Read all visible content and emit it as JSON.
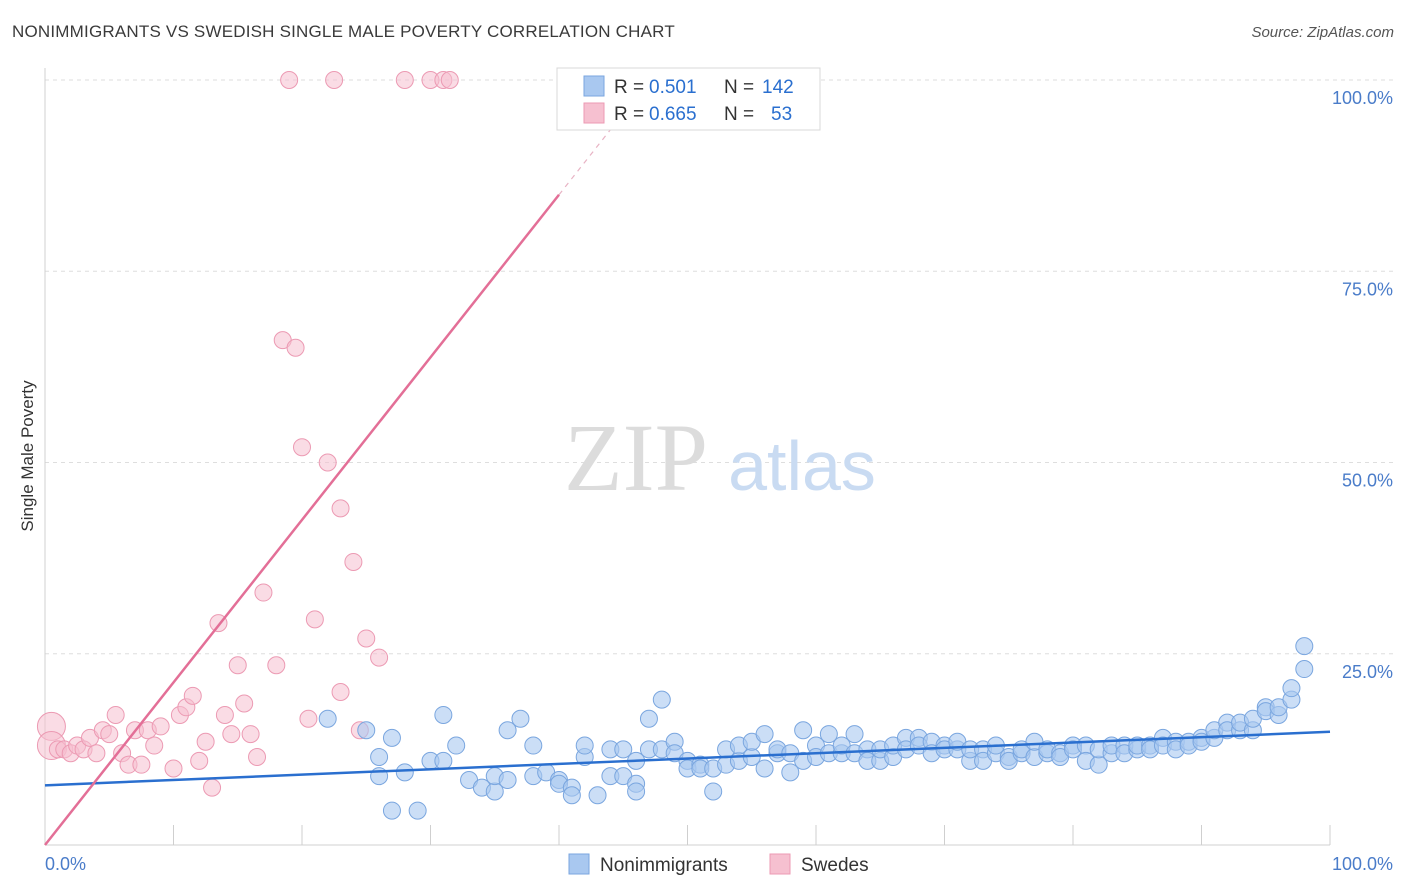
{
  "title": "NONIMMIGRANTS VS SWEDISH SINGLE MALE POVERTY CORRELATION CHART",
  "source": "Source: ZipAtlas.com",
  "watermark": {
    "zip": "ZIP",
    "atlas": "atlas"
  },
  "colors": {
    "blue_fill": "#a9c8f0",
    "blue_stroke": "#7aa6df",
    "blue_line": "#2a6fcf",
    "pink_fill": "#f6c0d0",
    "pink_stroke": "#ec9ab3",
    "pink_line": "#e36f97",
    "tick_blue": "#4a7cc9"
  },
  "legend": {
    "rows": [
      {
        "r_label": "R =",
        "r_value": "0.501",
        "n_label": "N =",
        "n_value": "142"
      },
      {
        "r_label": "R =",
        "r_value": "0.665",
        "n_label": "N =",
        "n_value": "53"
      }
    ]
  },
  "chart_data": {
    "type": "scatter",
    "title": "NONIMMIGRANTS VS SWEDISH SINGLE MALE POVERTY CORRELATION CHART",
    "xlabel": "",
    "ylabel": "Single Male Poverty",
    "xlim": [
      0,
      100
    ],
    "ylim": [
      0,
      100
    ],
    "x_tick_labels": [
      "0.0%",
      "100.0%"
    ],
    "y_tick_labels": [
      "100.0%",
      "75.0%",
      "50.0%",
      "25.0%"
    ],
    "y_ticks": [
      100,
      75,
      50,
      25
    ],
    "grid": true,
    "legend_placement": "bottom-center",
    "series": [
      {
        "name": "Nonimmigrants",
        "color": "#a9c8f0",
        "r": 0.501,
        "n": 142,
        "trend": {
          "x": [
            0,
            100
          ],
          "y": [
            7.8,
            14.8
          ]
        },
        "points": [
          [
            22,
            16.5
          ],
          [
            25,
            15
          ],
          [
            26,
            11.5
          ],
          [
            26,
            9
          ],
          [
            27,
            14
          ],
          [
            27,
            4.5
          ],
          [
            28,
            9.5
          ],
          [
            29,
            4.5
          ],
          [
            30,
            11
          ],
          [
            31,
            11
          ],
          [
            31,
            17
          ],
          [
            32,
            13
          ],
          [
            33,
            8.5
          ],
          [
            34,
            7.5
          ],
          [
            35,
            7
          ],
          [
            35,
            9
          ],
          [
            36,
            8.5
          ],
          [
            36,
            15
          ],
          [
            37,
            16.5
          ],
          [
            38,
            13
          ],
          [
            38,
            9
          ],
          [
            39,
            9.5
          ],
          [
            40,
            8.5
          ],
          [
            40,
            8
          ],
          [
            41,
            7.5
          ],
          [
            41,
            6.5
          ],
          [
            42,
            11.5
          ],
          [
            42,
            13
          ],
          [
            43,
            6.5
          ],
          [
            44,
            12.5
          ],
          [
            44,
            9
          ],
          [
            45,
            9
          ],
          [
            45,
            12.5
          ],
          [
            46,
            11
          ],
          [
            46,
            8
          ],
          [
            46,
            7
          ],
          [
            47,
            16.5
          ],
          [
            47,
            12.5
          ],
          [
            48,
            19
          ],
          [
            48,
            12.5
          ],
          [
            49,
            13.5
          ],
          [
            49,
            12
          ],
          [
            50,
            11
          ],
          [
            50,
            10
          ],
          [
            51,
            10.5
          ],
          [
            51,
            10
          ],
          [
            52,
            10
          ],
          [
            52,
            7
          ],
          [
            53,
            10.5
          ],
          [
            53,
            12.5
          ],
          [
            54,
            11
          ],
          [
            54,
            13
          ],
          [
            55,
            11.5
          ],
          [
            55,
            13.5
          ],
          [
            56,
            10
          ],
          [
            56,
            14.5
          ],
          [
            57,
            12
          ],
          [
            57,
            12.5
          ],
          [
            58,
            9.5
          ],
          [
            58,
            12
          ],
          [
            59,
            11
          ],
          [
            59,
            15
          ],
          [
            60,
            13
          ],
          [
            60,
            11.5
          ],
          [
            61,
            12
          ],
          [
            61,
            14.5
          ],
          [
            62,
            12
          ],
          [
            62,
            13
          ],
          [
            63,
            12
          ],
          [
            63,
            14.5
          ],
          [
            64,
            12.5
          ],
          [
            64,
            11
          ],
          [
            65,
            11
          ],
          [
            65,
            12.5
          ],
          [
            66,
            11.5
          ],
          [
            66,
            13
          ],
          [
            67,
            14
          ],
          [
            67,
            12.5
          ],
          [
            68,
            14
          ],
          [
            68,
            13
          ],
          [
            69,
            13.5
          ],
          [
            69,
            12
          ],
          [
            70,
            13
          ],
          [
            70,
            12.5
          ],
          [
            71,
            12.5
          ],
          [
            71,
            13.5
          ],
          [
            72,
            11
          ],
          [
            72,
            12.5
          ],
          [
            73,
            12.5
          ],
          [
            73,
            11
          ],
          [
            74,
            12
          ],
          [
            74,
            13
          ],
          [
            75,
            11.5
          ],
          [
            75,
            11
          ],
          [
            76,
            12
          ],
          [
            76,
            12.5
          ],
          [
            77,
            11.5
          ],
          [
            77,
            13.5
          ],
          [
            78,
            12
          ],
          [
            78,
            12.5
          ],
          [
            79,
            12
          ],
          [
            79,
            11.5
          ],
          [
            80,
            13
          ],
          [
            80,
            12.5
          ],
          [
            81,
            13
          ],
          [
            81,
            11
          ],
          [
            82,
            10.5
          ],
          [
            82,
            12.5
          ],
          [
            83,
            12
          ],
          [
            83,
            13
          ],
          [
            84,
            13
          ],
          [
            84,
            12
          ],
          [
            85,
            12.5
          ],
          [
            85,
            13
          ],
          [
            86,
            13
          ],
          [
            86,
            12.5
          ],
          [
            87,
            14
          ],
          [
            87,
            13
          ],
          [
            88,
            13.5
          ],
          [
            88,
            12.5
          ],
          [
            89,
            13.5
          ],
          [
            89,
            13
          ],
          [
            90,
            14
          ],
          [
            90,
            13.5
          ],
          [
            91,
            14
          ],
          [
            91,
            15
          ],
          [
            92,
            16
          ],
          [
            92,
            15
          ],
          [
            93,
            15
          ],
          [
            93,
            16
          ],
          [
            94,
            15
          ],
          [
            94,
            16.5
          ],
          [
            95,
            18
          ],
          [
            95,
            17.5
          ],
          [
            96,
            17
          ],
          [
            96,
            18
          ],
          [
            97,
            19
          ],
          [
            97,
            20.5
          ],
          [
            98,
            23
          ],
          [
            98,
            26
          ]
        ]
      },
      {
        "name": "Swedes",
        "color": "#f6c0d0",
        "r": 0.665,
        "n": 53,
        "trend": {
          "x": [
            0,
            40
          ],
          "y": [
            0,
            85
          ]
        },
        "trend_dashed": {
          "x": [
            40,
            44
          ],
          "y": [
            85,
            93.5
          ]
        },
        "points": [
          [
            0.5,
            15.5
          ],
          [
            0.5,
            13
          ],
          [
            1,
            12.5
          ],
          [
            1.5,
            12.5
          ],
          [
            2,
            12
          ],
          [
            2.5,
            13
          ],
          [
            3,
            12.5
          ],
          [
            3.5,
            14
          ],
          [
            4,
            12
          ],
          [
            4.5,
            15
          ],
          [
            5,
            14.5
          ],
          [
            5.5,
            17
          ],
          [
            6,
            12
          ],
          [
            6.5,
            10.5
          ],
          [
            7,
            15
          ],
          [
            7.5,
            10.5
          ],
          [
            8,
            15
          ],
          [
            8.5,
            13
          ],
          [
            9,
            15.5
          ],
          [
            10,
            10
          ],
          [
            10.5,
            17
          ],
          [
            11,
            18
          ],
          [
            11.5,
            19.5
          ],
          [
            12,
            11
          ],
          [
            12.5,
            13.5
          ],
          [
            13,
            7.5
          ],
          [
            13.5,
            29
          ],
          [
            14,
            17
          ],
          [
            14.5,
            14.5
          ],
          [
            15,
            23.5
          ],
          [
            15.5,
            18.5
          ],
          [
            16,
            14.5
          ],
          [
            16.5,
            11.5
          ],
          [
            17,
            33
          ],
          [
            18,
            23.5
          ],
          [
            18.5,
            66
          ],
          [
            19,
            100
          ],
          [
            19.5,
            65
          ],
          [
            20,
            52
          ],
          [
            20.5,
            16.5
          ],
          [
            21,
            29.5
          ],
          [
            22,
            50
          ],
          [
            22.5,
            100
          ],
          [
            23,
            20
          ],
          [
            23,
            44
          ],
          [
            24,
            37
          ],
          [
            24.5,
            15
          ],
          [
            25,
            27
          ],
          [
            26,
            24.5
          ],
          [
            28,
            100
          ],
          [
            30,
            100
          ],
          [
            31,
            100
          ],
          [
            31.5,
            100
          ]
        ]
      }
    ]
  },
  "bottom_legend": [
    {
      "label": "Nonimmigrants",
      "color": "#a9c8f0"
    },
    {
      "label": "Swedes",
      "color": "#f6c0d0"
    }
  ]
}
